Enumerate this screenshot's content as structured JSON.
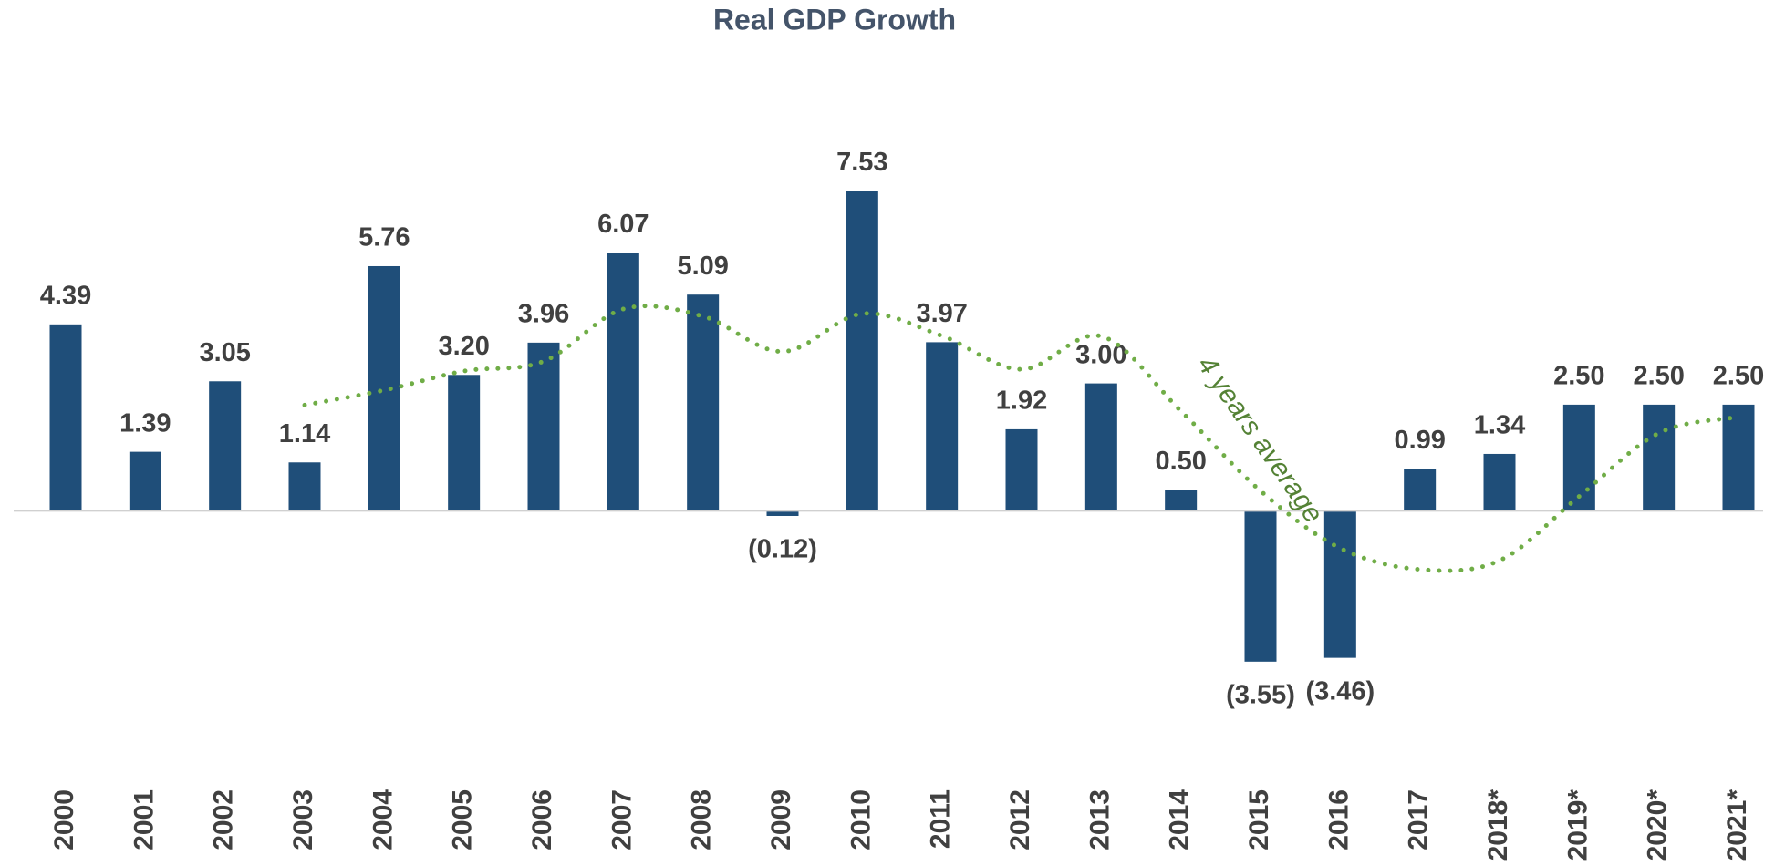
{
  "chart_data": {
    "type": "bar",
    "title": "Real GDP Growth",
    "categories": [
      "2000",
      "2001",
      "2002",
      "2003",
      "2004",
      "2005",
      "2006",
      "2007",
      "2008",
      "2009",
      "2010",
      "2011",
      "2012",
      "2013",
      "2014",
      "2015",
      "2016",
      "2017",
      "2018*",
      "2019*",
      "2020*",
      "2021*"
    ],
    "series": [
      {
        "name": "Real GDP Growth",
        "type": "bar",
        "color": "#1f4e79",
        "values": [
          4.39,
          1.39,
          3.05,
          1.14,
          5.76,
          3.2,
          3.96,
          6.07,
          5.09,
          -0.12,
          7.53,
          3.97,
          1.92,
          3.0,
          0.5,
          -3.55,
          -3.46,
          0.99,
          1.34,
          2.5,
          2.5,
          2.5
        ],
        "value_labels": [
          "4.39",
          "1.39",
          "3.05",
          "1.14",
          "5.76",
          "3.20",
          "3.96",
          "6.07",
          "5.09",
          "(0.12)",
          "7.53",
          "3.97",
          "1.92",
          "3.00",
          "0.50",
          "(3.55)",
          "(3.46)",
          "0.99",
          "1.34",
          "2.50",
          "2.50",
          "2.50"
        ]
      },
      {
        "name": "4 years average",
        "type": "line",
        "color": "#70ad47",
        "values": [
          null,
          null,
          null,
          2.49,
          2.84,
          3.29,
          3.52,
          4.75,
          4.58,
          3.75,
          4.64,
          4.12,
          3.33,
          4.11,
          2.35,
          0.47,
          -0.88,
          -1.38,
          -1.17,
          0.34,
          1.83,
          2.21
        ]
      }
    ],
    "annotation": "4 years average",
    "ylim": [
      -6,
      9
    ]
  }
}
